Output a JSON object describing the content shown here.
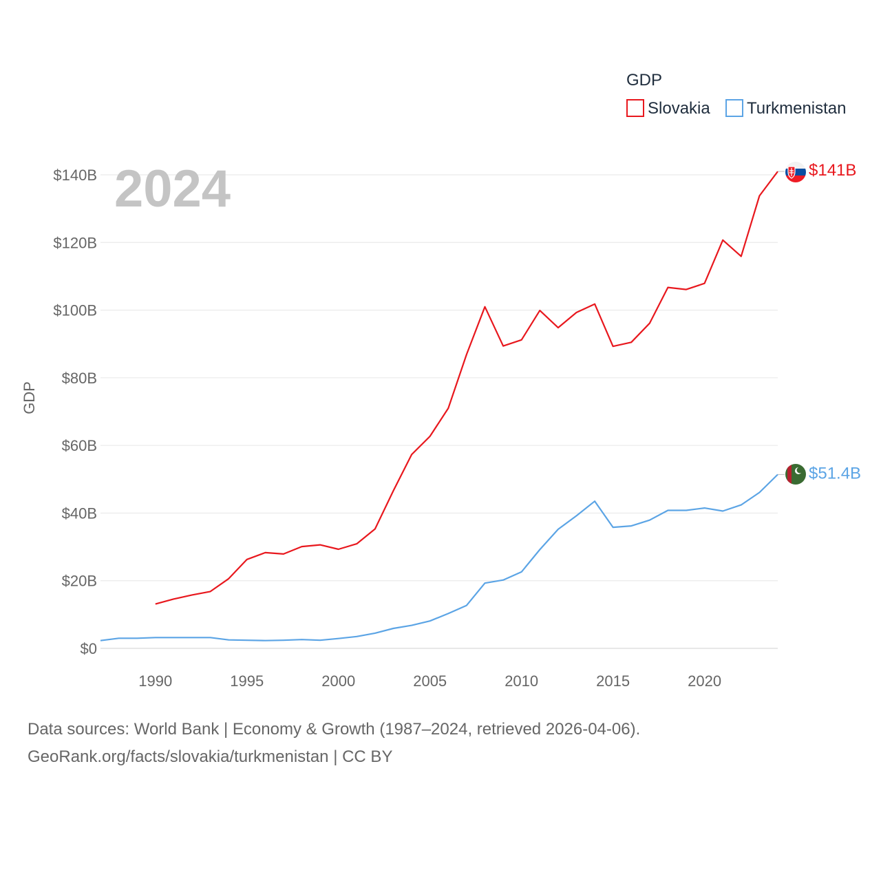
{
  "chart_data": {
    "type": "line",
    "year_label": "2024",
    "ylabel": "GDP",
    "legend": {
      "title": "GDP",
      "position": "top-right"
    },
    "ylim": [
      0,
      140
    ],
    "y_ticks": [
      0,
      20,
      40,
      60,
      80,
      100,
      120,
      140
    ],
    "y_tick_labels": [
      "$0",
      "$20B",
      "$40B",
      "$60B",
      "$80B",
      "$100B",
      "$120B",
      "$140B"
    ],
    "xlim": [
      1987,
      2024
    ],
    "x_ticks": [
      1990,
      1995,
      2000,
      2005,
      2010,
      2015,
      2020
    ],
    "x_tick_labels": [
      "1990",
      "1995",
      "2000",
      "2005",
      "2010",
      "2015",
      "2020"
    ],
    "series": [
      {
        "name": "Slovakia",
        "color": "#e8171d",
        "end_label": "$141B",
        "flag": "slovakia-flag-icon",
        "x": [
          1990,
          1991,
          1992,
          1993,
          1994,
          1995,
          1996,
          1997,
          1998,
          1999,
          2000,
          2001,
          2002,
          2003,
          2004,
          2005,
          2006,
          2007,
          2008,
          2009,
          2010,
          2011,
          2012,
          2013,
          2014,
          2015,
          2016,
          2017,
          2018,
          2019,
          2020,
          2021,
          2022,
          2023,
          2024
        ],
        "values": [
          13.1,
          14.6,
          15.8,
          16.8,
          20.6,
          26.3,
          28.3,
          27.9,
          30.1,
          30.6,
          29.3,
          30.9,
          35.3,
          46.6,
          57.3,
          62.7,
          71.0,
          86.9,
          101.0,
          89.4,
          91.2,
          99.9,
          94.8,
          99.3,
          101.8,
          89.3,
          90.5,
          96.1,
          106.7,
          106.1,
          107.9,
          120.7,
          115.9,
          133.8,
          141.0
        ]
      },
      {
        "name": "Turkmenistan",
        "color": "#5ba4e5",
        "end_label": "$51.4B",
        "flag": "turkmenistan-flag-icon",
        "x": [
          1987,
          1988,
          1989,
          1990,
          1991,
          1992,
          1993,
          1994,
          1995,
          1996,
          1997,
          1998,
          1999,
          2000,
          2001,
          2002,
          2003,
          2004,
          2005,
          2006,
          2007,
          2008,
          2009,
          2010,
          2011,
          2012,
          2013,
          2014,
          2015,
          2016,
          2017,
          2018,
          2019,
          2020,
          2021,
          2022,
          2023,
          2024
        ],
        "values": [
          2.3,
          3.0,
          3.0,
          3.2,
          3.2,
          3.2,
          3.2,
          2.5,
          2.4,
          2.3,
          2.4,
          2.6,
          2.4,
          2.9,
          3.5,
          4.5,
          5.9,
          6.8,
          8.1,
          10.3,
          12.7,
          19.3,
          20.2,
          22.6,
          29.2,
          35.2,
          39.2,
          43.5,
          35.8,
          36.2,
          37.9,
          40.8,
          40.8,
          41.5,
          40.6,
          42.4,
          46.1,
          51.4
        ]
      }
    ]
  },
  "footer": {
    "line1": "Data sources: World Bank | Economy & Growth (1987–2024, retrieved 2026-04-06).",
    "line2": "GeoRank.org/facts/slovakia/turkmenistan | CC BY"
  }
}
